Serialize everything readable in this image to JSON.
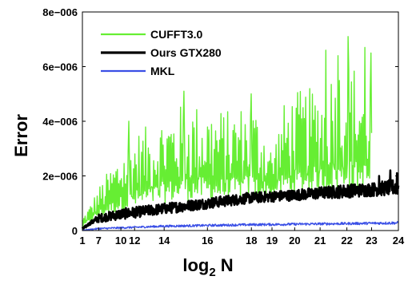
{
  "chart_data": {
    "type": "line",
    "xlabel_base": "log",
    "xlabel_sub": "2",
    "xlabel_tail": " N",
    "ylabel": "Error",
    "xlim": [
      1,
      24
    ],
    "ylim": [
      0,
      8e-06
    ],
    "x_ticks": [
      {
        "value": 1,
        "label": "1"
      },
      {
        "value": 2.18,
        "label": "7"
      },
      {
        "value": 3.8,
        "label": "10"
      },
      {
        "value": 4.8,
        "label": "12"
      },
      {
        "value": 6.95,
        "label": "14"
      },
      {
        "value": 10.1,
        "label": "16"
      },
      {
        "value": 13.3,
        "label": "18"
      },
      {
        "value": 14.8,
        "label": "19"
      },
      {
        "value": 16.45,
        "label": "20"
      },
      {
        "value": 18.3,
        "label": "21"
      },
      {
        "value": 20.25,
        "label": "22"
      },
      {
        "value": 22.05,
        "label": "23"
      },
      {
        "value": 24,
        "label": "24"
      }
    ],
    "y_ticks": [
      {
        "value": 0,
        "label": "0"
      },
      {
        "value": 2e-06,
        "label": "2e−006"
      },
      {
        "value": 4e-06,
        "label": "4e−006"
      },
      {
        "value": 6e-06,
        "label": "6e−006"
      },
      {
        "value": 8e-06,
        "label": "8e−006"
      }
    ],
    "legend_position": "top-left",
    "series": [
      {
        "name": "CUFFT3.0",
        "color": "#66ee33",
        "x_end": 22.05,
        "envelope": [
          [
            1,
            1e-07,
            5e-07
          ],
          [
            1.5,
            3e-07,
            9e-07
          ],
          [
            2.18,
            5e-07,
            1.6e-06
          ],
          [
            3.0,
            6e-07,
            2.3e-06
          ],
          [
            3.8,
            7e-07,
            3e-06
          ],
          [
            4.8,
            8e-07,
            3.6e-06
          ],
          [
            6.0,
            9e-07,
            3.9e-06
          ],
          [
            6.95,
            1e-06,
            4.3e-06
          ],
          [
            8.5,
            1.1e-06,
            4.7e-06
          ],
          [
            10.1,
            1.1e-06,
            4.6e-06
          ],
          [
            11.7,
            1.1e-06,
            4.4e-06
          ],
          [
            13.3,
            1.2e-06,
            4.8e-06
          ],
          [
            14.2,
            1.2e-06,
            4e-06
          ],
          [
            14.8,
            1.2e-06,
            3e-06
          ],
          [
            15.6,
            1.3e-06,
            4.6e-06
          ],
          [
            16.45,
            1.3e-06,
            5.1e-06
          ],
          [
            17.4,
            1.4e-06,
            5.2e-06
          ],
          [
            18.3,
            1.4e-06,
            5.3e-06
          ],
          [
            19.3,
            1.4e-06,
            6.1e-06
          ],
          [
            20.25,
            1.4e-06,
            6.4e-06
          ],
          [
            21.1,
            1.4e-06,
            6e-06
          ],
          [
            22.05,
            1.4e-06,
            5.8e-06
          ]
        ],
        "peaks": [
          [
            4.4,
            4e-06
          ],
          [
            8.4,
            5.1e-06
          ],
          [
            13.3,
            5e-06
          ],
          [
            18.7,
            6.6e-06
          ],
          [
            19.6,
            6.4e-06
          ],
          [
            20.35,
            7.1e-06
          ],
          [
            21.55,
            6.7e-06
          ],
          [
            22.0,
            6.5e-06
          ]
        ]
      },
      {
        "name": "Ours GTX280",
        "color": "#000000",
        "x_end": 24,
        "envelope": [
          [
            1,
            0,
            1e-07
          ],
          [
            1.5,
            2e-07,
            3e-07
          ],
          [
            2.18,
            3e-07,
            6e-07
          ],
          [
            3.8,
            4e-07,
            8e-07
          ],
          [
            6.95,
            6e-07,
            1e-06
          ],
          [
            10.1,
            8e-07,
            1.2e-06
          ],
          [
            13.3,
            1e-06,
            1.4e-06
          ],
          [
            16.45,
            1.1e-06,
            1.5e-06
          ],
          [
            20.25,
            1.2e-06,
            1.7e-06
          ],
          [
            22.05,
            1.25e-06,
            1.75e-06
          ],
          [
            24,
            1.3e-06,
            1.9e-06
          ]
        ],
        "peaks": [
          [
            22.6,
            2e-06
          ],
          [
            23.4,
            2.2e-06
          ],
          [
            23.9,
            2.1e-06
          ]
        ]
      },
      {
        "name": "MKL",
        "color": "#3a4fe6",
        "x_end": 24,
        "envelope": [
          [
            1,
            0,
            2e-08
          ],
          [
            2.18,
            4e-08,
            1e-07
          ],
          [
            6.95,
            1.2e-07,
            2e-07
          ],
          [
            13.3,
            1.7e-07,
            2.6e-07
          ],
          [
            20.25,
            2.1e-07,
            3e-07
          ],
          [
            24,
            2.3e-07,
            3.3e-07
          ]
        ],
        "peaks": []
      }
    ]
  }
}
